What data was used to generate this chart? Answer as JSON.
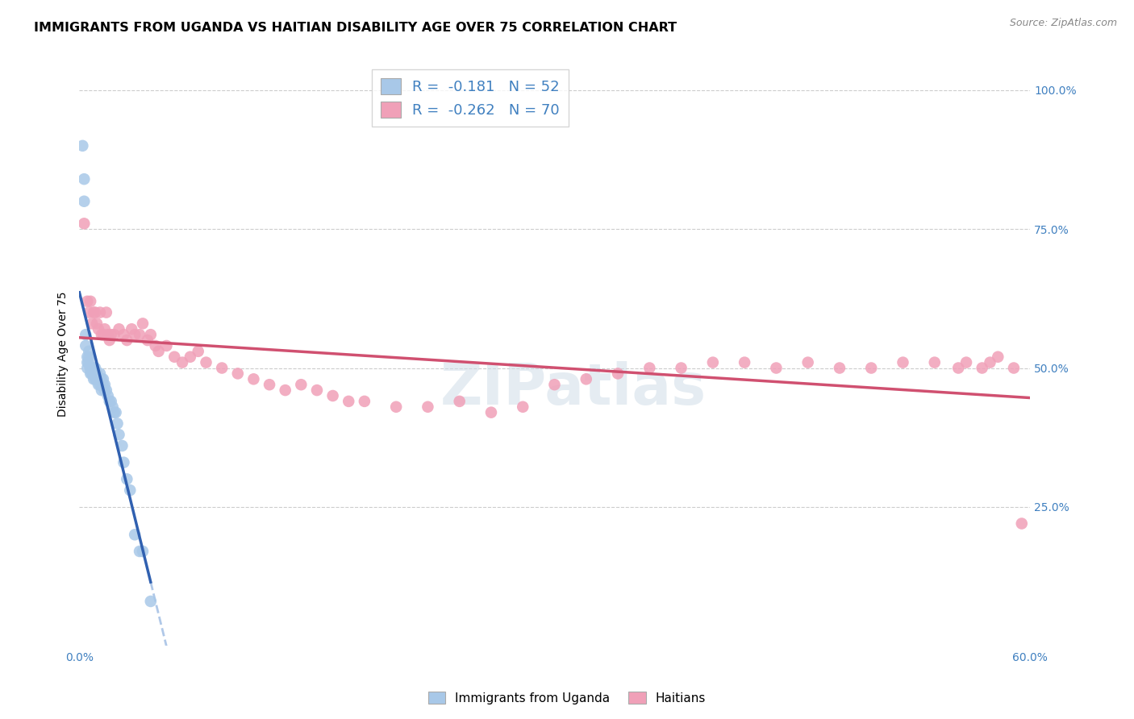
{
  "title": "IMMIGRANTS FROM UGANDA VS HAITIAN DISABILITY AGE OVER 75 CORRELATION CHART",
  "source": "Source: ZipAtlas.com",
  "ylabel": "Disability Age Over 75",
  "xlim": [
    0.0,
    0.6
  ],
  "ylim": [
    0.0,
    1.05
  ],
  "ytick_vals": [
    0.0,
    0.25,
    0.5,
    0.75,
    1.0
  ],
  "ytick_labels": [
    "",
    "25.0%",
    "50.0%",
    "75.0%",
    "100.0%"
  ],
  "xtick_vals": [
    0.0,
    0.6
  ],
  "xtick_labels": [
    "0.0%",
    "60.0%"
  ],
  "background_color": "#ffffff",
  "watermark": "ZIPatlas",
  "uganda_color": "#a8c8e8",
  "haiti_color": "#f0a0b8",
  "uganda_trend_color": "#3060b0",
  "haiti_trend_color": "#d05070",
  "uganda_dash_color": "#b0c8e8",
  "grid_color": "#cccccc",
  "axis_tick_color": "#4080c0",
  "uganda_r": "-0.181",
  "uganda_n": "52",
  "haiti_r": "-0.262",
  "haiti_n": "70",
  "title_fontsize": 11.5,
  "label_fontsize": 10,
  "legend_fontsize": 13,
  "uganda_x": [
    0.002,
    0.003,
    0.003,
    0.004,
    0.004,
    0.005,
    0.005,
    0.005,
    0.006,
    0.006,
    0.006,
    0.007,
    0.007,
    0.007,
    0.008,
    0.008,
    0.008,
    0.009,
    0.009,
    0.009,
    0.01,
    0.01,
    0.01,
    0.011,
    0.011,
    0.012,
    0.012,
    0.013,
    0.013,
    0.014,
    0.014,
    0.015,
    0.015,
    0.016,
    0.016,
    0.017,
    0.018,
    0.019,
    0.02,
    0.021,
    0.022,
    0.023,
    0.024,
    0.025,
    0.027,
    0.028,
    0.03,
    0.032,
    0.035,
    0.038,
    0.04,
    0.045
  ],
  "uganda_y": [
    0.9,
    0.84,
    0.8,
    0.56,
    0.54,
    0.52,
    0.51,
    0.5,
    0.53,
    0.52,
    0.51,
    0.5,
    0.5,
    0.49,
    0.5,
    0.49,
    0.49,
    0.5,
    0.49,
    0.48,
    0.5,
    0.49,
    0.48,
    0.49,
    0.48,
    0.48,
    0.47,
    0.49,
    0.47,
    0.48,
    0.46,
    0.48,
    0.47,
    0.47,
    0.46,
    0.46,
    0.45,
    0.44,
    0.44,
    0.43,
    0.42,
    0.42,
    0.4,
    0.38,
    0.36,
    0.33,
    0.3,
    0.28,
    0.2,
    0.17,
    0.17,
    0.08
  ],
  "haiti_x": [
    0.003,
    0.005,
    0.006,
    0.007,
    0.008,
    0.009,
    0.01,
    0.011,
    0.012,
    0.013,
    0.014,
    0.015,
    0.016,
    0.017,
    0.018,
    0.019,
    0.02,
    0.022,
    0.025,
    0.028,
    0.03,
    0.033,
    0.035,
    0.038,
    0.04,
    0.043,
    0.045,
    0.048,
    0.05,
    0.055,
    0.06,
    0.065,
    0.07,
    0.075,
    0.08,
    0.09,
    0.1,
    0.11,
    0.12,
    0.13,
    0.14,
    0.15,
    0.16,
    0.17,
    0.18,
    0.2,
    0.22,
    0.24,
    0.26,
    0.28,
    0.3,
    0.32,
    0.34,
    0.36,
    0.38,
    0.4,
    0.42,
    0.44,
    0.46,
    0.48,
    0.5,
    0.52,
    0.54,
    0.555,
    0.56,
    0.57,
    0.575,
    0.58,
    0.59,
    0.595
  ],
  "haiti_y": [
    0.76,
    0.62,
    0.6,
    0.62,
    0.58,
    0.6,
    0.6,
    0.58,
    0.57,
    0.6,
    0.56,
    0.56,
    0.57,
    0.6,
    0.56,
    0.55,
    0.56,
    0.56,
    0.57,
    0.56,
    0.55,
    0.57,
    0.56,
    0.56,
    0.58,
    0.55,
    0.56,
    0.54,
    0.53,
    0.54,
    0.52,
    0.51,
    0.52,
    0.53,
    0.51,
    0.5,
    0.49,
    0.48,
    0.47,
    0.46,
    0.47,
    0.46,
    0.45,
    0.44,
    0.44,
    0.43,
    0.43,
    0.44,
    0.42,
    0.43,
    0.47,
    0.48,
    0.49,
    0.5,
    0.5,
    0.51,
    0.51,
    0.5,
    0.51,
    0.5,
    0.5,
    0.51,
    0.51,
    0.5,
    0.51,
    0.5,
    0.51,
    0.52,
    0.5,
    0.22
  ]
}
